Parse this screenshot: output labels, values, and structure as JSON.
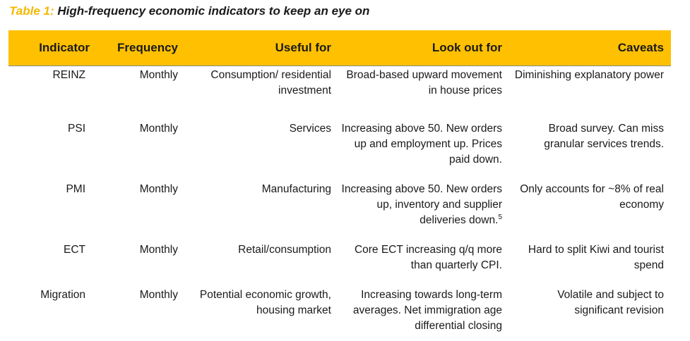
{
  "title": {
    "number": "Table 1:",
    "text": "High-frequency economic indicators to keep an eye on"
  },
  "table": {
    "headers": [
      "Indicator",
      "Frequency",
      "Useful for",
      "Look out for",
      "Caveats"
    ],
    "rows": [
      {
        "indicator": "REINZ",
        "frequency": "Monthly",
        "useful_for": "Consumption/ residential investment",
        "look_out_for": "Broad-based upward movement in house prices",
        "look_out_sup": "",
        "caveats": "Diminishing explanatory power"
      },
      {
        "indicator": "PSI",
        "frequency": "Monthly",
        "useful_for": "Services",
        "look_out_for": "Increasing above 50. New orders up and employment up. Prices paid down.",
        "look_out_sup": "",
        "caveats": "Broad survey. Can miss granular services trends."
      },
      {
        "indicator": "PMI",
        "frequency": "Monthly",
        "useful_for": "Manufacturing",
        "look_out_for": "Increasing above 50. New orders up, inventory and supplier deliveries down.",
        "look_out_sup": "5",
        "caveats": "Only accounts for ~8% of real economy"
      },
      {
        "indicator": "ECT",
        "frequency": "Monthly",
        "useful_for": "Retail/consumption",
        "look_out_for": "Core ECT increasing q/q more than quarterly CPI.",
        "look_out_sup": "",
        "caveats": "Hard to split Kiwi and tourist spend"
      },
      {
        "indicator": "Migration",
        "frequency": "Monthly",
        "useful_for": "Potential economic growth, housing market",
        "look_out_for": "Increasing towards long-term averages. Net immigration age differential closing",
        "look_out_sup": "",
        "caveats": "Volatile and subject to significant revision"
      }
    ]
  },
  "colors": {
    "header_bg": "#fec000",
    "title_number": "#f4b800",
    "text": "#1a1a1a"
  }
}
